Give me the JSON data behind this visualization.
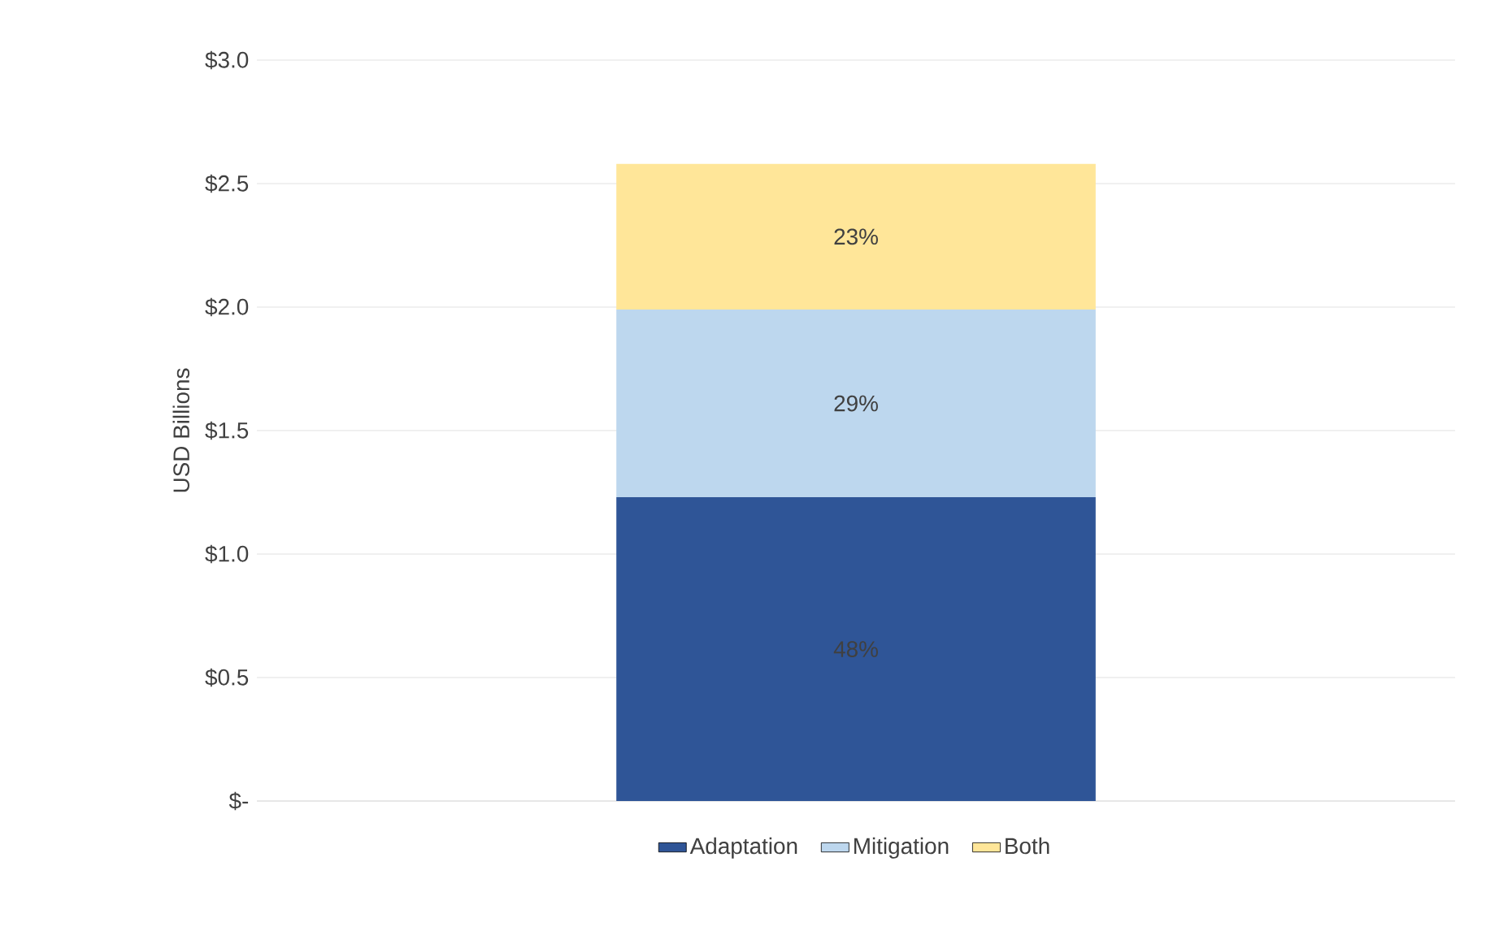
{
  "chart_data": {
    "type": "bar",
    "stacked": true,
    "ylabel": "USD Billions",
    "categories": [
      null
    ],
    "series": [
      {
        "name": "Adaptation",
        "color": "#2f5597",
        "values": [
          1.23
        ]
      },
      {
        "name": "Mitigation",
        "color": "#bdd7ee",
        "values": [
          0.76
        ]
      },
      {
        "name": "Both",
        "color": "#ffe699",
        "values": [
          0.59
        ]
      }
    ],
    "annotations": [
      "48%",
      "29%",
      "23%"
    ],
    "ylim": [
      0,
      3.0
    ],
    "yticks": [
      {
        "value": 0,
        "label": "$-"
      },
      {
        "value": 0.5,
        "label": "$0.5"
      },
      {
        "value": 1.0,
        "label": "$1.0"
      },
      {
        "value": 1.5,
        "label": "$1.5"
      },
      {
        "value": 2.0,
        "label": "$2.0"
      },
      {
        "value": 2.5,
        "label": "$2.5"
      },
      {
        "value": 3.0,
        "label": "$3.0"
      }
    ],
    "grid": "y",
    "legend": "bottom"
  }
}
